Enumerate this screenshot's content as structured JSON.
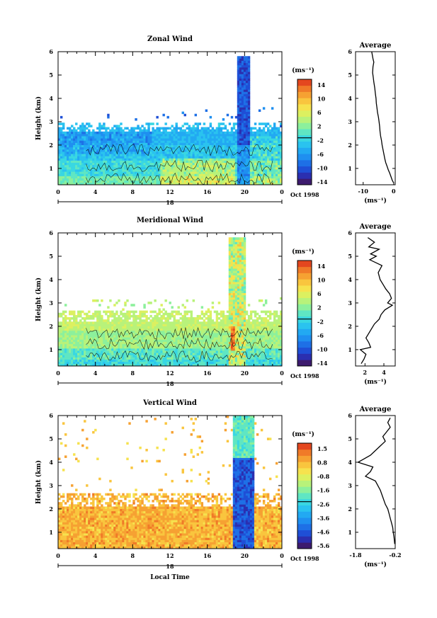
{
  "colorscale": [
    "#3d1b6e",
    "#2b2fb0",
    "#1f4fd6",
    "#1e70e6",
    "#1f8ff0",
    "#22a9f2",
    "#2ac3ef",
    "#39d7e2",
    "#5fe6c3",
    "#8cf09c",
    "#b8f27a",
    "#dcf060",
    "#f6e24e",
    "#f9c53e",
    "#f6a132",
    "#f07a28",
    "#e4471f"
  ],
  "cbar_cut_frac": 0.555,
  "panels": [
    {
      "key": "zonal",
      "title": "Zonal Wind",
      "ylabel": "Height (km)",
      "yticks": [
        "1",
        "2",
        "3",
        "4",
        "5",
        "6"
      ],
      "xticks": [
        "0",
        "4",
        "8",
        "12",
        "16",
        "20",
        "0"
      ],
      "date_day": "18",
      "date_right": "Oct 1998",
      "cbar_unit": "(ms⁻¹)",
      "cbar_labels": [
        "14",
        "10",
        "6",
        "2",
        "-2",
        "-6",
        "-10",
        "-14"
      ],
      "avg_title": "Average",
      "avg_xlabel": "(ms⁻¹)",
      "avg_xticks": [
        "-10",
        "0"
      ],
      "avg_xlim": [
        -12.5,
        0.5
      ],
      "avg_profile_x": [
        -7.2,
        -7,
        -6.8,
        -6.5,
        -6.8,
        -6.9,
        -6.7,
        -6.5,
        -6.2,
        -6,
        -5.8,
        -5.7,
        -5.5,
        -5.3,
        -5,
        -4.8,
        -4.6,
        -4.5,
        -4.3,
        -4,
        -3.8,
        -3.5,
        -3.2,
        -2.9,
        -2.6,
        -2.2,
        -1.8,
        -1.3,
        -0.9,
        -0.5,
        -0.1
      ],
      "avg_profile_y": [
        6,
        5.85,
        5.7,
        5.55,
        5.35,
        5.1,
        4.9,
        4.7,
        4.45,
        4.2,
        4,
        3.8,
        3.6,
        3.4,
        3.2,
        3,
        2.8,
        2.6,
        2.4,
        2.2,
        2,
        1.8,
        1.6,
        1.4,
        1.25,
        1.1,
        0.95,
        0.8,
        0.65,
        0.5,
        0.4
      ]
    },
    {
      "key": "meridional",
      "title": "Meridional Wind",
      "ylabel": "Height (km)",
      "yticks": [
        "1",
        "2",
        "3",
        "4",
        "5",
        "6"
      ],
      "xticks": [
        "0",
        "4",
        "8",
        "12",
        "16",
        "20",
        "0"
      ],
      "date_day": "18",
      "date_right": "Oct 1998",
      "cbar_unit": "(ms⁻¹)",
      "cbar_labels": [
        "14",
        "10",
        "6",
        "2",
        "-2",
        "-6",
        "-10",
        "-14"
      ],
      "avg_title": "Average",
      "avg_xlabel": "(ms⁻¹)",
      "avg_xticks": [
        "2",
        "4"
      ],
      "avg_xlim": [
        1.0,
        5.2
      ],
      "avg_profile_x": [
        2.3,
        3,
        2.4,
        3.5,
        2.6,
        3.2,
        2.5,
        3.8,
        3.4,
        3.6,
        3.9,
        4.2,
        4.6,
        4.8,
        4.4,
        4.9,
        4.1,
        3.7,
        3.5,
        3,
        2.7,
        2.4,
        2.1,
        2.4,
        2.6,
        1.5,
        2.1,
        1.9,
        1.6
      ],
      "avg_profile_y": [
        5.8,
        5.6,
        5.4,
        5.3,
        5.1,
        5,
        4.85,
        4.6,
        4.3,
        4,
        3.8,
        3.6,
        3.4,
        3.2,
        3,
        2.9,
        2.7,
        2.5,
        2.3,
        2.1,
        1.9,
        1.7,
        1.5,
        1.3,
        1.1,
        1,
        0.8,
        0.6,
        0.4
      ]
    },
    {
      "key": "vertical",
      "title": "Vertical Wind",
      "ylabel": "Height (km)",
      "yticks": [
        "1",
        "2",
        "3",
        "4",
        "5",
        "6"
      ],
      "xticks": [
        "0",
        "4",
        "8",
        "12",
        "16",
        "20",
        "0"
      ],
      "date_day": "18",
      "date_right": "Oct 1998",
      "xlabel": "Local Time",
      "cbar_unit": "(ms⁻¹)",
      "cbar_labels": [
        "1.5",
        "0.8",
        "-0.8",
        "-1.6",
        "-2.6",
        "-3.6",
        "-4.6",
        "-5.6"
      ],
      "avg_title": "Average",
      "avg_xlabel": "(ms⁻¹)",
      "avg_xticks": [
        "-1.8",
        "-0.2"
      ],
      "avg_xlim": [
        -1.8,
        -0.2
      ],
      "avg_profile_x": [
        -0.4,
        -0.5,
        -0.4,
        -0.55,
        -0.7,
        -0.6,
        -0.8,
        -1,
        -1.2,
        -1.7,
        -1.1,
        -1.2,
        -1.4,
        -1,
        -0.9,
        -0.8,
        -0.7,
        -0.6,
        -0.5,
        -0.45,
        -0.4,
        -0.35,
        -0.3,
        -0.28,
        -0.25,
        -0.22
      ],
      "avg_profile_y": [
        5.9,
        5.7,
        5.5,
        5.3,
        5.1,
        4.9,
        4.7,
        4.5,
        4.3,
        4,
        3.8,
        3.6,
        3.4,
        3.2,
        3,
        2.8,
        2.5,
        2.2,
        2,
        1.8,
        1.6,
        1.4,
        1.2,
        1,
        0.8,
        0.5
      ]
    }
  ],
  "chart_data": {
    "type": "heatmap",
    "figures": [
      {
        "title": "Zonal Wind",
        "xlabel": "Local Time",
        "ylabel": "Height (km)",
        "xlim": [
          0,
          24
        ],
        "ylim": [
          0.3,
          6
        ],
        "color_unit": "ms⁻¹",
        "color_range": [
          -15,
          15
        ],
        "shaded_region": "0–2.8 km mostly blue/cyan (westward); green-yellow near surface after 12 LT; deep blue column 19–21 LT reaching 5.8 km",
        "average_profile": "≈ -7 ms⁻¹ aloft weakening to ≈ 0 ms⁻¹ near the surface"
      },
      {
        "title": "Meridional Wind",
        "xlabel": "Local Time",
        "ylabel": "Height (km)",
        "xlim": [
          0,
          24
        ],
        "ylim": [
          0.3,
          6
        ],
        "color_unit": "ms⁻¹",
        "color_range": [
          -15,
          15
        ],
        "shaded_region": "0–2.7 km green/cyan with a red cell near 19 LT, 1.5 km; narrow column 18–20 LT reaching 5.8 km",
        "average_profile": "1.5–5 ms⁻¹, maximum near 3.4 km"
      },
      {
        "title": "Vertical Wind",
        "xlabel": "Local Time",
        "ylabel": "Height (km)",
        "xlim": [
          0,
          24
        ],
        "ylim": [
          0.3,
          6
        ],
        "color_unit": "ms⁻¹",
        "color_range": [
          -6.2,
          1.9
        ],
        "shaded_region": "0–2.7 km yellow-orange (≈ 0.5–1.5 ms⁻¹); deep blue downward column 19–21 LT reaching 6 km",
        "average_profile": "≈ -0.3 ms⁻¹ near surface, minimum ≈ -1.7 ms⁻¹ near 4 km"
      }
    ],
    "date": "18 Oct 1998"
  }
}
